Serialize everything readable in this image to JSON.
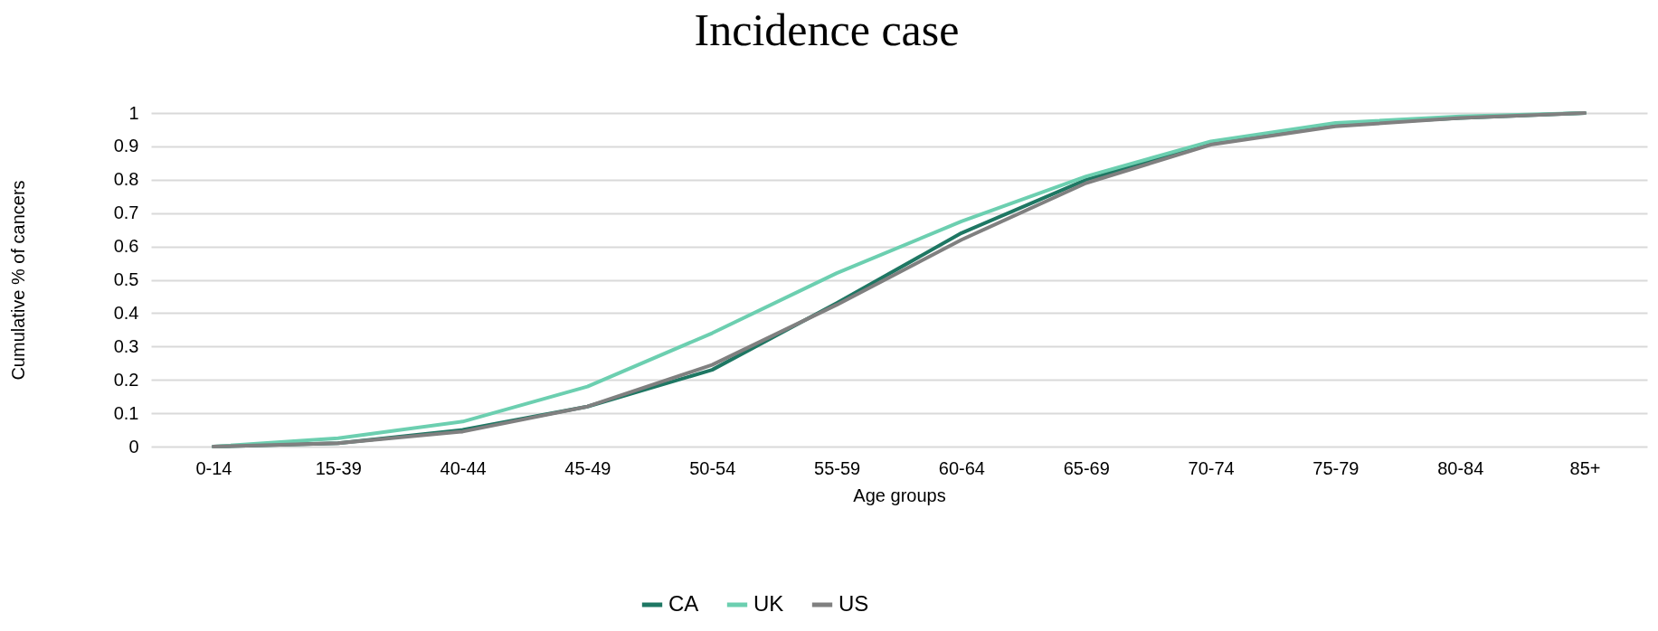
{
  "chart_data": {
    "type": "line",
    "title": "Incidence case",
    "xlabel": "Age groups",
    "ylabel": "Cumulative % of cancers",
    "categories": [
      "0-14",
      "15-39",
      "40-44",
      "45-49",
      "50-54",
      "55-59",
      "60-64",
      "65-69",
      "70-74",
      "75-79",
      "80-84",
      "85+"
    ],
    "series": [
      {
        "name": "CA",
        "color": "#1e7763",
        "values": [
          0,
          0.01,
          0.05,
          0.12,
          0.23,
          0.43,
          0.64,
          0.8,
          0.91,
          0.965,
          0.985,
          1
        ]
      },
      {
        "name": "UK",
        "color": "#6ccfb0",
        "values": [
          0,
          0.025,
          0.075,
          0.18,
          0.34,
          0.52,
          0.675,
          0.81,
          0.915,
          0.97,
          0.99,
          1
        ]
      },
      {
        "name": "US",
        "color": "#808080",
        "values": [
          0,
          0.01,
          0.045,
          0.12,
          0.245,
          0.425,
          0.62,
          0.79,
          0.905,
          0.96,
          0.985,
          1
        ]
      }
    ],
    "ylim": [
      0,
      1
    ],
    "line_style": "solid",
    "yticks": [
      0,
      0.1,
      0.2,
      0.3,
      0.4,
      0.5,
      0.6,
      0.7,
      0.8,
      0.9,
      1
    ],
    "grid": "y",
    "legend": "bottom"
  }
}
